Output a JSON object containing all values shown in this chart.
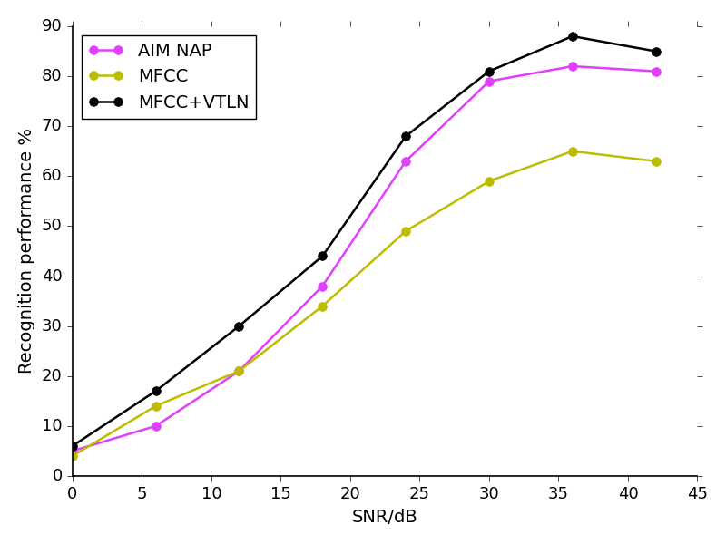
{
  "aim_nap_x": [
    0,
    6,
    12,
    18,
    24,
    30,
    36,
    42
  ],
  "aim_nap_y": [
    5,
    10,
    21,
    38,
    63,
    79,
    82,
    81
  ],
  "mfcc_x": [
    0,
    6,
    12,
    18,
    24,
    30,
    36,
    42
  ],
  "mfcc_y": [
    4,
    14,
    21,
    34,
    49,
    59,
    65,
    63
  ],
  "vtln_x": [
    0,
    6,
    12,
    18,
    24,
    30,
    36,
    42
  ],
  "vtln_y": [
    6,
    17,
    30,
    44,
    68,
    81,
    88,
    85
  ],
  "aim_nap_color": "#e040fb",
  "mfcc_color": "#bcbc00",
  "vtln_color": "#000000",
  "xlabel": "SNR/dB",
  "ylabel": "Recognition performance %",
  "xlim": [
    0,
    45
  ],
  "ylim": [
    0,
    90
  ],
  "xticks": [
    0,
    5,
    10,
    15,
    20,
    25,
    30,
    35,
    40,
    45
  ],
  "yticks": [
    0,
    10,
    20,
    30,
    40,
    50,
    60,
    70,
    80,
    90
  ],
  "legend_aim": "AIM NAP",
  "legend_mfcc": "MFCC",
  "legend_vtln": "MFCC+VTLN",
  "marker": "o",
  "linewidth": 1.8,
  "markersize": 7,
  "bg_color": "#ffffff",
  "fig_bg_color": "#ffffff",
  "xlabel_fontsize": 14,
  "ylabel_fontsize": 14,
  "tick_labelsize": 13,
  "legend_fontsize": 14
}
